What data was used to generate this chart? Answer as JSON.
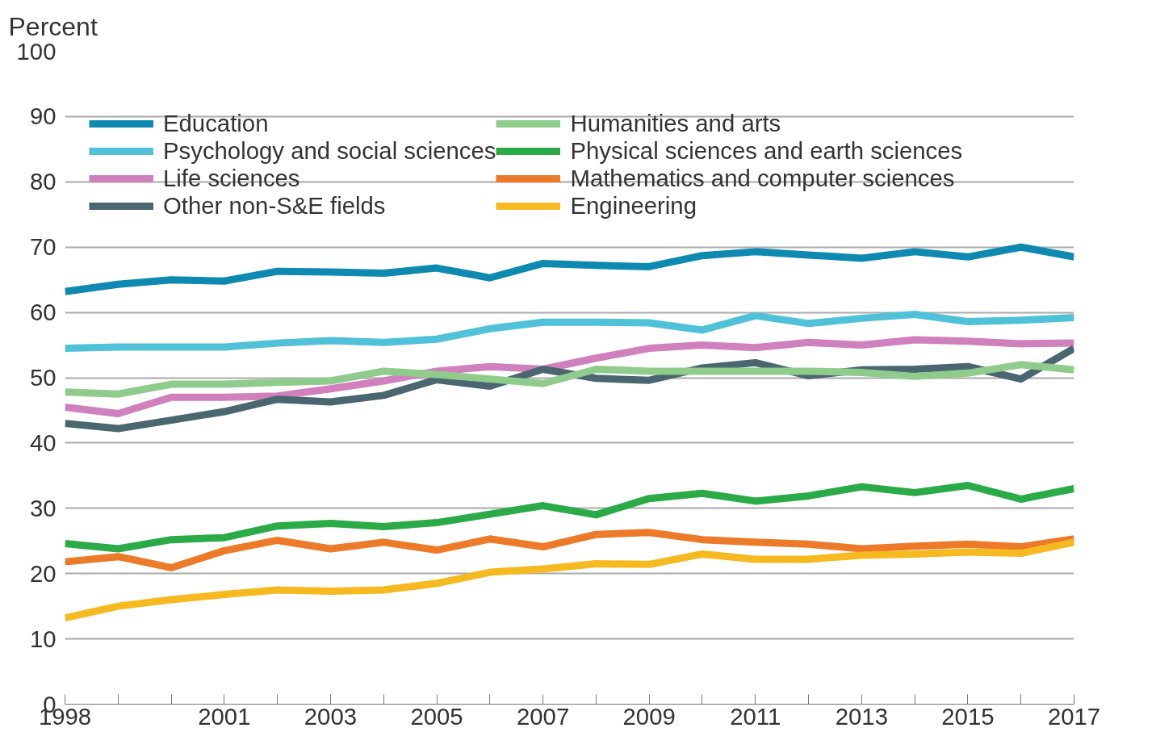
{
  "chart_data": {
    "type": "line",
    "ylabel": "Percent",
    "x": [
      1998,
      1999,
      2000,
      2001,
      2002,
      2003,
      2004,
      2005,
      2006,
      2007,
      2008,
      2009,
      2010,
      2011,
      2012,
      2013,
      2014,
      2015,
      2016,
      2017
    ],
    "xlim": [
      1998,
      2017
    ],
    "xticks": [
      1998,
      {
        "value": 1999,
        "label": null
      },
      {
        "value": 2000,
        "label": null
      },
      2001,
      {
        "value": 2002,
        "label": null
      },
      2003,
      {
        "value": 2004,
        "label": null
      },
      2005,
      {
        "value": 2006,
        "label": null
      },
      2007,
      {
        "value": 2008,
        "label": null
      },
      2009,
      {
        "value": 2010,
        "label": null
      },
      2011,
      {
        "value": 2012,
        "label": null
      },
      2013,
      {
        "value": 2014,
        "label": null
      },
      2015,
      {
        "value": 2016,
        "label": null
      },
      2017
    ],
    "ylim": [
      0,
      100
    ],
    "yticks": [
      0,
      10,
      20,
      30,
      40,
      50,
      60,
      70,
      80,
      90,
      100
    ],
    "grid": "y",
    "legend": "top left",
    "line_style": "solid",
    "marker": "none",
    "series": [
      {
        "name": "Education",
        "color": "#0e89b0",
        "values": [
          63.2,
          64.3,
          65,
          64.8,
          66.3,
          66.2,
          66,
          66.8,
          65.3,
          67.5,
          67.2,
          67,
          68.7,
          69.3,
          68.8,
          68.3,
          69.3,
          68.5,
          70,
          68.5
        ]
      },
      {
        "name": "Psychology and social sciences",
        "color": "#4fc1d8",
        "values": [
          54.5,
          54.7,
          54.7,
          54.7,
          55.3,
          55.7,
          55.4,
          55.9,
          57.5,
          58.5,
          58.5,
          58.4,
          57.3,
          59.5,
          58.3,
          59.1,
          59.7,
          58.6,
          58.8,
          59.2
        ]
      },
      {
        "name": "Life sciences",
        "color": "#cf80bd",
        "values": [
          45.5,
          44.5,
          47,
          47,
          47.2,
          48.3,
          49.5,
          51,
          51.7,
          51.3,
          53,
          54.5,
          55,
          54.6,
          55.4,
          55,
          55.8,
          55.6,
          55.2,
          55.3
        ]
      },
      {
        "name": "Other non-S&E fields",
        "color": "#4a6670",
        "values": [
          43,
          42.2,
          43.5,
          44.8,
          46.7,
          46.3,
          47.3,
          49.7,
          48.7,
          51.3,
          49.9,
          49.6,
          51.5,
          52.3,
          50.3,
          51.2,
          51.3,
          51.7,
          49.8,
          54.5
        ]
      },
      {
        "name": "Humanities and arts",
        "color": "#8fcc8c",
        "values": [
          47.8,
          47.5,
          49,
          49,
          49.3,
          49.5,
          51,
          50.5,
          49.8,
          49.1,
          51.3,
          51,
          51,
          51,
          51,
          50.8,
          50.2,
          50.7,
          52,
          51.2
        ]
      },
      {
        "name": "Physical sciences and earth sciences",
        "color": "#2aab47",
        "values": [
          24.6,
          23.8,
          25.2,
          25.5,
          27.3,
          27.7,
          27.2,
          27.8,
          29.1,
          30.4,
          29,
          31.5,
          32.3,
          31.1,
          31.9,
          33.3,
          32.4,
          33.5,
          31.4,
          33
        ]
      },
      {
        "name": "Mathematics and computer sciences",
        "color": "#ec7a28",
        "values": [
          21.8,
          22.6,
          20.9,
          23.5,
          25.1,
          23.8,
          24.8,
          23.6,
          25.3,
          24.1,
          26,
          26.3,
          25.2,
          24.8,
          24.5,
          23.8,
          24.2,
          24.5,
          24.1,
          25.3
        ]
      },
      {
        "name": "Engineering",
        "color": "#f6b91f",
        "values": [
          13.2,
          15,
          16,
          16.8,
          17.5,
          17.3,
          17.5,
          18.5,
          20.2,
          20.7,
          21.5,
          21.4,
          23,
          22.2,
          22.2,
          22.8,
          23,
          23.3,
          23.1,
          24.8
        ]
      }
    ]
  }
}
